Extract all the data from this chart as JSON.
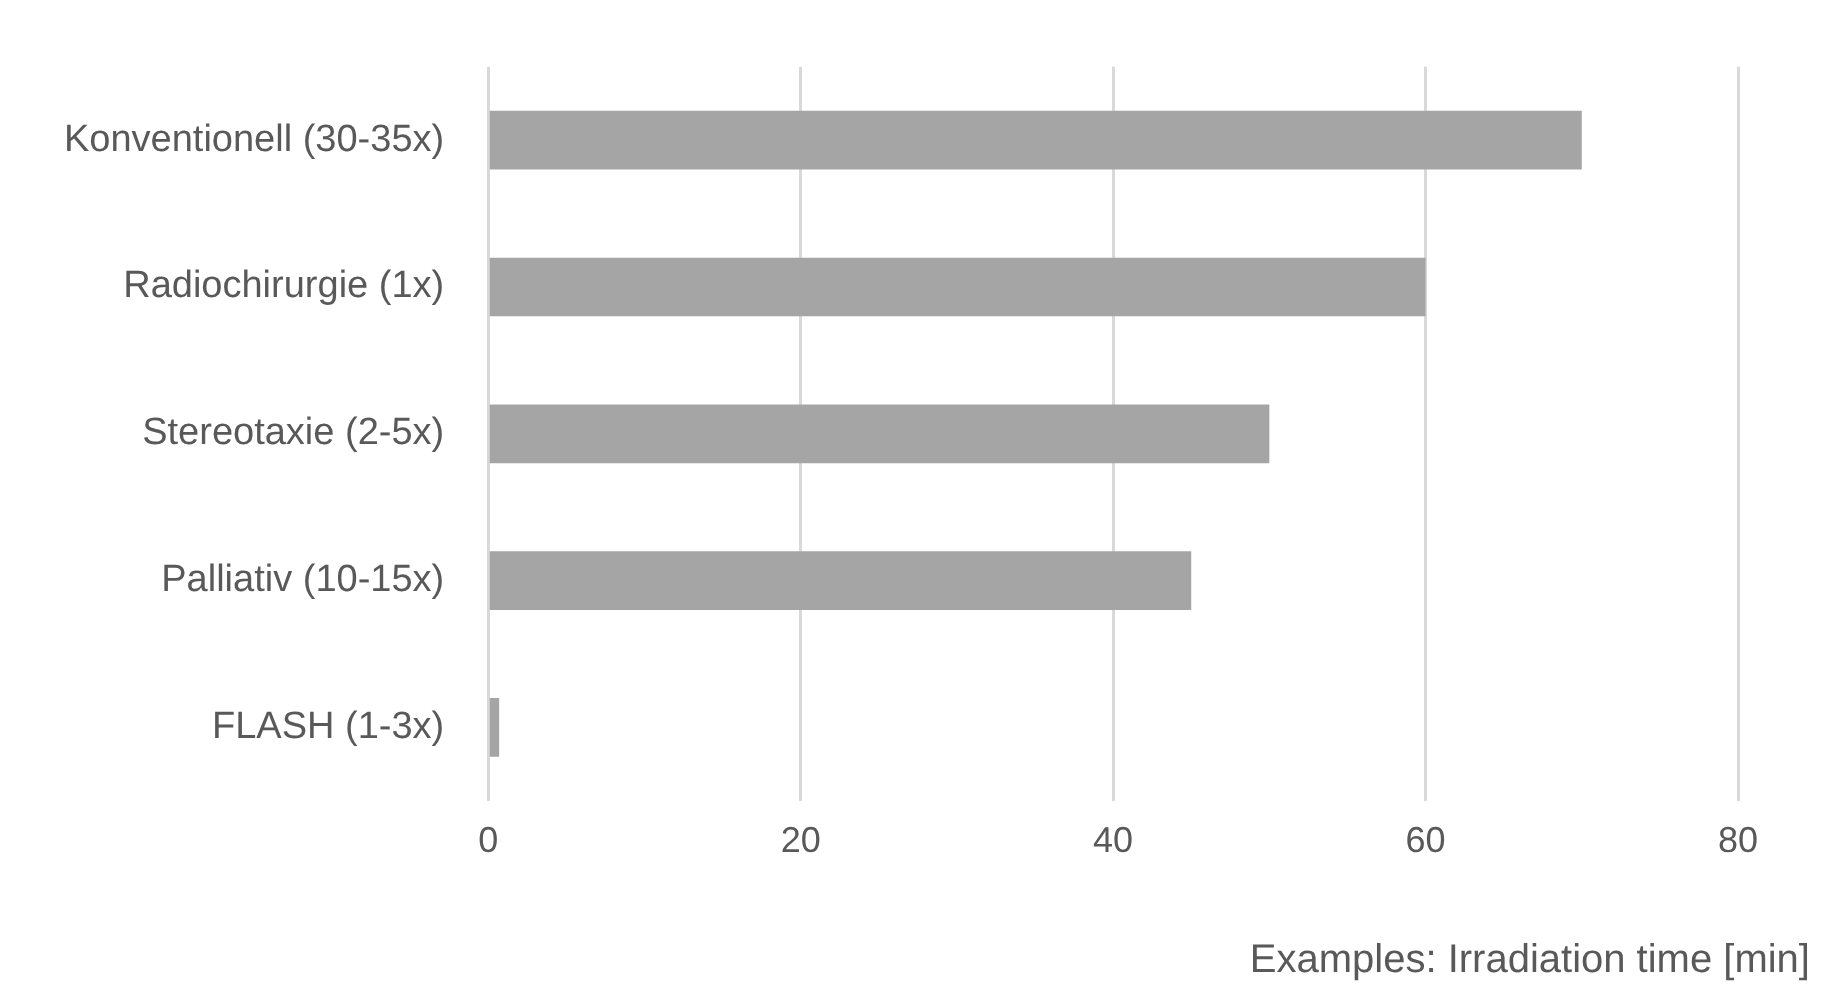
{
  "chart_data": {
    "type": "bar",
    "orientation": "horizontal",
    "categories": [
      "Konventionell (30-35x)",
      "Radiochirurgie (1x)",
      "Stereotaxie (2-5x)",
      "Palliativ (10-15x)",
      "FLASH (1-3x)"
    ],
    "values": [
      70,
      60,
      50,
      45,
      0.7
    ],
    "color": "#a5a5a5",
    "xlim": [
      0,
      80
    ],
    "xticks": [
      0,
      20,
      40,
      60,
      80
    ],
    "grid": "x",
    "xlabel": "Examples: Irradiation time [min]"
  }
}
